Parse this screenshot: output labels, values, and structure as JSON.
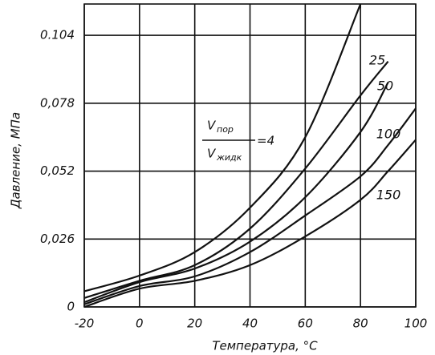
{
  "chart_data": {
    "type": "line",
    "x_label": "Температура, °C",
    "y_label": "Давление, МПа",
    "x": [
      -20,
      0,
      20,
      40,
      60,
      80,
      90,
      100
    ],
    "series": [
      {
        "color": "#111111",
        "values": [
          0.006,
          0.012,
          0.021,
          0.038,
          0.065,
          0.116,
          null,
          null
        ]
      },
      {
        "name": "25",
        "color": "#111111",
        "values": [
          0.0034,
          0.01,
          0.016,
          0.03,
          0.053,
          0.081,
          0.094,
          null
        ]
      },
      {
        "name": "50",
        "color": "#111111",
        "values": [
          0.0018,
          0.0095,
          0.0147,
          0.025,
          0.042,
          0.067,
          0.086,
          null
        ]
      },
      {
        "name": "100",
        "color": "#111111",
        "values": [
          0.001,
          0.008,
          0.0117,
          0.021,
          0.035,
          0.05,
          0.062,
          0.076
        ]
      },
      {
        "name": "150",
        "color": "#111111",
        "values": [
          0,
          0.007,
          0.01,
          0.016,
          0.027,
          0.041,
          0.052,
          0.064
        ]
      }
    ],
    "annotation": {
      "numerator": "V",
      "numerator_sub": "пор",
      "denominator": "V",
      "denominator_sub": "жидк",
      "value": "=4"
    },
    "xlim": [
      -20,
      100
    ],
    "xticks": [
      -20,
      0,
      20,
      40,
      60,
      80,
      100
    ],
    "ylim": [
      0,
      0.116
    ],
    "yticks": [
      0,
      {
        "value": 0.026,
        "label": "0,026"
      },
      {
        "value": 0.052,
        "label": "0,052"
      },
      {
        "value": 0.078,
        "label": "0,078"
      },
      {
        "value": 0.104,
        "label": "0.104"
      }
    ],
    "grid": true
  }
}
